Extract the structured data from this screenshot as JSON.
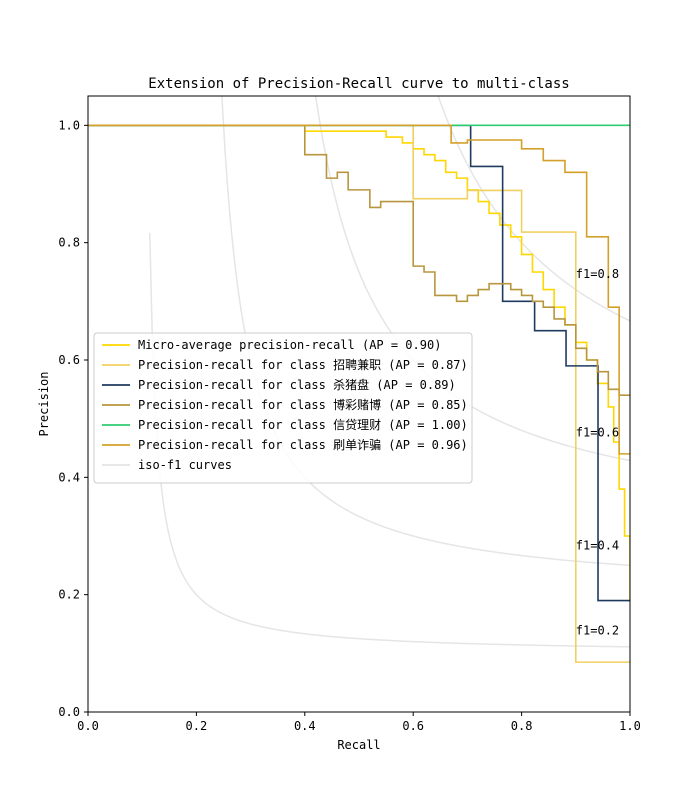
{
  "chart_data": {
    "type": "line",
    "title": "Extension of Precision-Recall curve to multi-class",
    "xlabel": "Recall",
    "ylabel": "Precision",
    "xlim": [
      0.0,
      1.0
    ],
    "ylim": [
      0.0,
      1.05
    ],
    "xticks": [
      "0.0",
      "0.2",
      "0.4",
      "0.6",
      "0.8",
      "1.0"
    ],
    "yticks": [
      "0.0",
      "0.2",
      "0.4",
      "0.6",
      "0.8",
      "1.0"
    ],
    "grid": false,
    "legend_position": "center-left",
    "iso_f1": {
      "label": "iso-f1 curves",
      "color": "#e5e5e5",
      "values": [
        0.2,
        0.4,
        0.6,
        0.8
      ],
      "annotations": [
        "f1=0.2",
        "f1=0.4",
        "f1=0.6",
        "f1=0.8"
      ]
    },
    "series": [
      {
        "name": "Micro-average precision-recall (AP = 0.90)",
        "color": "#ffd700",
        "x": [
          0.0,
          0.4,
          0.4,
          0.45,
          0.5,
          0.55,
          0.58,
          0.6,
          0.62,
          0.64,
          0.66,
          0.68,
          0.7,
          0.72,
          0.74,
          0.76,
          0.78,
          0.8,
          0.82,
          0.84,
          0.86,
          0.88,
          0.9,
          0.92,
          0.94,
          0.96,
          0.97,
          0.98,
          0.99,
          1.0,
          1.0
        ],
        "y": [
          1.0,
          1.0,
          0.99,
          0.99,
          0.99,
          0.98,
          0.97,
          0.96,
          0.95,
          0.94,
          0.92,
          0.91,
          0.89,
          0.87,
          0.85,
          0.83,
          0.81,
          0.78,
          0.75,
          0.72,
          0.69,
          0.66,
          0.63,
          0.6,
          0.56,
          0.52,
          0.46,
          0.38,
          0.3,
          0.2,
          0.19
        ]
      },
      {
        "name": "Precision-recall for class 招聘兼职 (AP = 0.87)",
        "color": "#f0d060",
        "x": [
          0.0,
          0.6,
          0.6,
          0.7,
          0.7,
          0.8,
          0.8,
          0.9,
          0.9,
          1.0
        ],
        "y": [
          1.0,
          1.0,
          0.875,
          0.875,
          0.889,
          0.889,
          0.818,
          0.818,
          0.085,
          0.088
        ]
      },
      {
        "name": "Precision-recall for class 杀猪盘 (AP = 0.89)",
        "color": "#1f3a5f",
        "x": [
          0.0,
          0.706,
          0.706,
          0.765,
          0.765,
          0.824,
          0.824,
          0.882,
          0.882,
          0.941,
          0.941,
          1.0
        ],
        "y": [
          1.0,
          1.0,
          0.93,
          0.93,
          0.7,
          0.7,
          0.65,
          0.65,
          0.59,
          0.59,
          0.19,
          0.19
        ]
      },
      {
        "name": "Precision-recall for class 博彩赌博 (AP = 0.85)",
        "color": "#b8963e",
        "x": [
          0.0,
          0.4,
          0.4,
          0.42,
          0.44,
          0.46,
          0.48,
          0.5,
          0.52,
          0.54,
          0.56,
          0.58,
          0.6,
          0.6,
          0.62,
          0.64,
          0.66,
          0.68,
          0.7,
          0.72,
          0.74,
          0.76,
          0.78,
          0.8,
          0.82,
          0.84,
          0.86,
          0.88,
          0.9,
          0.92,
          0.94,
          0.96,
          0.98,
          1.0
        ],
        "y": [
          1.0,
          1.0,
          0.95,
          0.95,
          0.91,
          0.92,
          0.89,
          0.89,
          0.86,
          0.87,
          0.87,
          0.87,
          0.87,
          0.76,
          0.75,
          0.71,
          0.71,
          0.7,
          0.71,
          0.72,
          0.73,
          0.73,
          0.72,
          0.71,
          0.7,
          0.69,
          0.67,
          0.66,
          0.62,
          0.6,
          0.58,
          0.55,
          0.54,
          0.54
        ]
      },
      {
        "name": "Precision-recall for class 信贷理财 (AP = 1.00)",
        "color": "#2ecc71",
        "x": [
          0.0,
          1.0
        ],
        "y": [
          1.0,
          1.0
        ]
      },
      {
        "name": "Precision-recall for class 刷单诈骗 (AP = 0.96)",
        "color": "#d4a02a",
        "x": [
          0.0,
          0.67,
          0.67,
          0.7,
          0.7,
          0.8,
          0.8,
          0.84,
          0.84,
          0.88,
          0.88,
          0.92,
          0.92,
          0.96,
          0.96,
          0.98,
          0.98,
          1.0
        ],
        "y": [
          1.0,
          1.0,
          0.97,
          0.97,
          0.975,
          0.975,
          0.96,
          0.96,
          0.94,
          0.94,
          0.92,
          0.92,
          0.81,
          0.81,
          0.69,
          0.69,
          0.44,
          0.44
        ]
      }
    ]
  }
}
